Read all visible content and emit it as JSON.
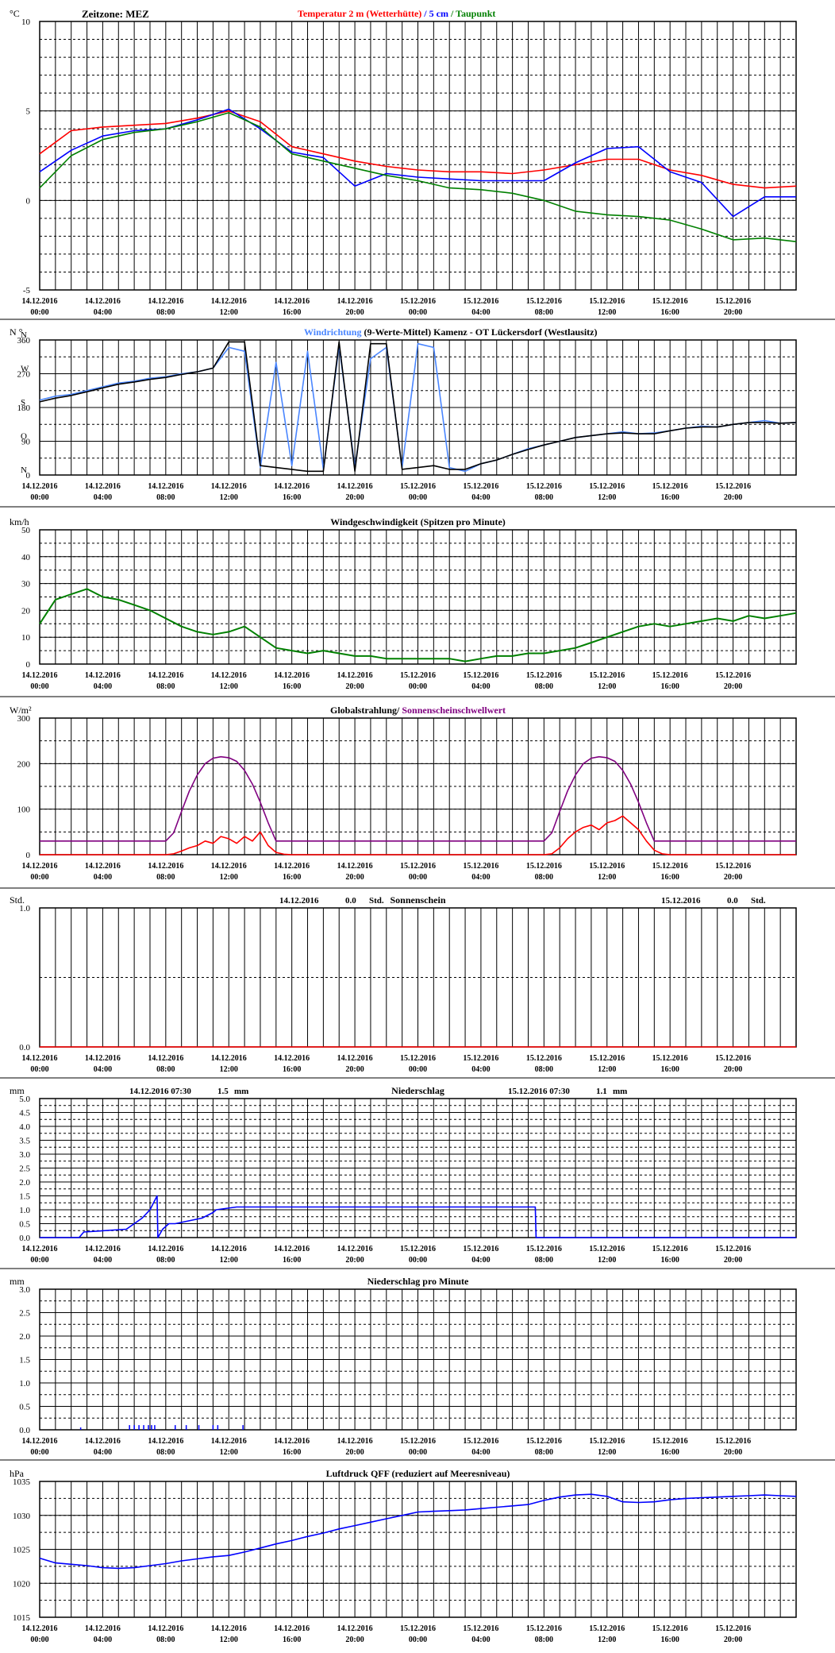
{
  "time_labels": [
    [
      "14.12.2016",
      "00:00"
    ],
    [
      "14.12.2016",
      "04:00"
    ],
    [
      "14.12.2016",
      "08:00"
    ],
    [
      "14.12.2016",
      "12:00"
    ],
    [
      "14.12.2016",
      "16:00"
    ],
    [
      "14.12.2016",
      "20:00"
    ],
    [
      "15.12.2016",
      "00:00"
    ],
    [
      "15.12.2016",
      "04:00"
    ],
    [
      "15.12.2016",
      "08:00"
    ],
    [
      "15.12.2016",
      "12:00"
    ],
    [
      "15.12.2016",
      "16:00"
    ],
    [
      "15.12.2016",
      "20:00"
    ]
  ],
  "colors": {
    "red": "#ff0000",
    "blue": "#0000ff",
    "green": "#008000",
    "purple": "#800080",
    "lightblue": "#4a86ff",
    "black": "#000000"
  },
  "chart_data": [
    {
      "id": "temp",
      "type": "line",
      "unit": "°C",
      "timezone": "Zeitzone: MEZ",
      "title_parts": [
        {
          "text": "Temperatur 2 m (Wetterhütte)",
          "color": "#ff0000"
        },
        {
          "text": "  /  ",
          "color": "#0000ff"
        },
        {
          "text": "5 cm",
          "color": "#0000ff"
        },
        {
          "text": " / ",
          "color": "#008000"
        },
        {
          "text": "Taupunkt",
          "color": "#008000"
        }
      ],
      "y_ticks": [
        "10",
        "5",
        "0",
        "-5"
      ],
      "ylim": [
        -5,
        10
      ],
      "x_hours": [
        0,
        2,
        4,
        6,
        8,
        10,
        12,
        14,
        16,
        18,
        20,
        22,
        24,
        26,
        28,
        30,
        32,
        34,
        36,
        38,
        40,
        42,
        44,
        46,
        48
      ],
      "series": [
        {
          "name": "Temperatur 2 m (Wetterhütte)",
          "color": "#ff0000",
          "values": [
            2.6,
            3.9,
            4.1,
            4.2,
            4.3,
            4.6,
            5.0,
            4.4,
            3.0,
            2.6,
            2.2,
            1.9,
            1.7,
            1.6,
            1.6,
            1.5,
            1.7,
            2.0,
            2.3,
            2.3,
            1.7,
            1.4,
            0.9,
            0.7,
            0.8
          ]
        },
        {
          "name": "5 cm",
          "color": "#0000ff",
          "values": [
            1.6,
            2.8,
            3.6,
            3.9,
            4.0,
            4.5,
            5.1,
            4.0,
            2.7,
            2.4,
            0.8,
            1.5,
            1.3,
            1.2,
            1.1,
            1.1,
            1.1,
            2.1,
            2.9,
            3.0,
            1.6,
            1.0,
            -0.9,
            0.2,
            0.2
          ]
        },
        {
          "name": "Taupunkt",
          "color": "#008000",
          "values": [
            0.7,
            2.5,
            3.4,
            3.8,
            4.0,
            4.4,
            4.9,
            4.1,
            2.6,
            2.2,
            1.8,
            1.4,
            1.1,
            0.7,
            0.6,
            0.4,
            0.0,
            -0.6,
            -0.8,
            -0.9,
            -1.1,
            -1.6,
            -2.2,
            -2.1,
            -2.3
          ]
        }
      ]
    },
    {
      "id": "wind_dir",
      "type": "line",
      "unit": "N °",
      "title_parts": [
        {
          "text": "Windrichtung",
          "color": "#4a86ff"
        },
        {
          "text": " (9-Werte-Mittel)",
          "color": "#000000"
        },
        {
          "text": "        Kamenz - OT Lückersdorf (Westlausitz)",
          "color": "#000000"
        }
      ],
      "y_ticks": [
        "360",
        "270",
        "180",
        "90",
        "0"
      ],
      "y_letters": [
        "N",
        "W",
        "S",
        "O",
        "N"
      ],
      "ylim": [
        0,
        360
      ],
      "x_hours": [
        0,
        1,
        2,
        3,
        4,
        5,
        6,
        7,
        8,
        9,
        10,
        11,
        12,
        13,
        14,
        15,
        16,
        17,
        18,
        19,
        20,
        21,
        22,
        23,
        24,
        25,
        26,
        27,
        28,
        29,
        30,
        31,
        32,
        33,
        34,
        35,
        36,
        37,
        38,
        39,
        40,
        41,
        42,
        43,
        44,
        45,
        46,
        47,
        48
      ],
      "series": [
        {
          "name": "Windrichtung",
          "color": "#4a86ff",
          "values": [
            200,
            210,
            215,
            225,
            235,
            245,
            250,
            258,
            262,
            270,
            275,
            285,
            340,
            330,
            20,
            300,
            25,
            330,
            15,
            345,
            20,
            310,
            340,
            20,
            350,
            340,
            20,
            10,
            30,
            40,
            55,
            70,
            80,
            90,
            100,
            105,
            110,
            115,
            110,
            112,
            118,
            125,
            130,
            128,
            135,
            140,
            145,
            138,
            140
          ]
        },
        {
          "name": "9-Werte-Mittel",
          "color": "#000000",
          "values": [
            195,
            205,
            212,
            222,
            232,
            242,
            248,
            255,
            260,
            268,
            275,
            285,
            355,
            355,
            25,
            20,
            15,
            10,
            10,
            355,
            10,
            350,
            350,
            15,
            20,
            25,
            15,
            15,
            30,
            40,
            55,
            68,
            80,
            90,
            100,
            105,
            110,
            112,
            110,
            110,
            118,
            125,
            128,
            128,
            135,
            140,
            140,
            138,
            140
          ]
        }
      ]
    },
    {
      "id": "wind_speed",
      "type": "line",
      "unit": "km/h",
      "title_parts": [
        {
          "text": "Windgeschwindigkeit (Spitzen pro Minute)",
          "color": "#000000"
        }
      ],
      "y_ticks": [
        "50",
        "40",
        "30",
        "20",
        "10",
        "0"
      ],
      "ylim": [
        0,
        50
      ],
      "x_hours": [
        0,
        1,
        2,
        3,
        4,
        5,
        6,
        7,
        8,
        9,
        10,
        11,
        12,
        13,
        14,
        15,
        16,
        17,
        18,
        19,
        20,
        21,
        22,
        23,
        24,
        25,
        26,
        27,
        28,
        29,
        30,
        31,
        32,
        33,
        34,
        35,
        36,
        37,
        38,
        39,
        40,
        41,
        42,
        43,
        44,
        45,
        46,
        47,
        48
      ],
      "series": [
        {
          "name": "Windgeschwindigkeit",
          "color": "#008000",
          "values": [
            15,
            24,
            26,
            28,
            25,
            24,
            22,
            20,
            17,
            14,
            12,
            11,
            12,
            14,
            10,
            6,
            5,
            4,
            5,
            4,
            3,
            3,
            2,
            2,
            2,
            2,
            2,
            1,
            2,
            3,
            3,
            4,
            4,
            5,
            6,
            8,
            10,
            12,
            14,
            15,
            14,
            15,
            16,
            17,
            16,
            18,
            17,
            18,
            19
          ]
        }
      ]
    },
    {
      "id": "radiation",
      "type": "line",
      "unit": "W/m²",
      "title_parts": [
        {
          "text": "Globalstrahlung/ ",
          "color": "#000000"
        },
        {
          "text": "Sonnenscheinschwellwert",
          "color": "#800080"
        }
      ],
      "y_ticks": [
        "300",
        "200",
        "100",
        "0"
      ],
      "ylim": [
        0,
        300
      ],
      "x_hours": [
        0,
        8,
        8.5,
        9,
        9.5,
        10,
        10.5,
        11,
        11.5,
        12,
        12.5,
        13,
        13.5,
        14,
        14.5,
        15,
        15.5,
        16,
        32,
        32.5,
        33,
        33.5,
        34,
        34.5,
        35,
        35.5,
        36,
        36.5,
        37,
        37.5,
        38,
        38.5,
        39,
        39.5,
        40,
        48
      ],
      "series": [
        {
          "name": "Globalstrahlung",
          "color": "#ff0000",
          "values": [
            0,
            0,
            2,
            8,
            15,
            20,
            30,
            25,
            40,
            35,
            25,
            40,
            30,
            50,
            20,
            5,
            1,
            0,
            0,
            2,
            15,
            35,
            50,
            60,
            65,
            55,
            70,
            75,
            85,
            70,
            55,
            30,
            10,
            2,
            0,
            0
          ]
        },
        {
          "name": "Sonnenscheinschwellwert",
          "color": "#800080",
          "values": [
            30,
            30,
            48,
            95,
            140,
            175,
            200,
            212,
            215,
            213,
            205,
            185,
            155,
            115,
            70,
            30,
            30,
            30,
            30,
            48,
            95,
            140,
            175,
            200,
            212,
            215,
            213,
            205,
            185,
            155,
            115,
            70,
            30,
            30,
            30,
            30
          ]
        }
      ]
    },
    {
      "id": "sunshine",
      "type": "line",
      "unit": "Std.",
      "title_parts": [
        {
          "text": "Sonnenschein",
          "color": "#000000"
        }
      ],
      "annotations": [
        {
          "date": "14.12.2016",
          "value": "0.0",
          "unit": "Std."
        },
        {
          "date": "15.12.2016",
          "value": "0.0",
          "unit": "Std."
        }
      ],
      "y_ticks": [
        "1.0",
        "0.0"
      ],
      "ylim": [
        0,
        1
      ],
      "x_hours": [
        0,
        48
      ],
      "series": [
        {
          "name": "Sonnenschein",
          "color": "#ff0000",
          "values": [
            0,
            0
          ]
        }
      ]
    },
    {
      "id": "precip",
      "type": "line",
      "unit": "mm",
      "title_parts": [
        {
          "text": "Niederschlag",
          "color": "#000000"
        }
      ],
      "annotations": [
        {
          "date": "14.12.2016 07:30",
          "value": "1.5",
          "unit": "mm"
        },
        {
          "date": "15.12.2016 07:30",
          "value": "1.1",
          "unit": "mm"
        }
      ],
      "y_ticks": [
        "5.0",
        "4.5",
        "4.0",
        "3.5",
        "3.0",
        "2.5",
        "2.0",
        "1.5",
        "1.0",
        "0.5",
        "0.0"
      ],
      "ylim": [
        0,
        5
      ],
      "x_hours": [
        0,
        2.5,
        2.8,
        5.5,
        6.5,
        7.0,
        7.45,
        7.5,
        7.8,
        8.2,
        8.6,
        10.3,
        11.0,
        11.2,
        12.5,
        31.45,
        31.5,
        48
      ],
      "series": [
        {
          "name": "Niederschlag",
          "color": "#0000ff",
          "values": [
            0,
            0,
            0.2,
            0.3,
            0.7,
            1.0,
            1.5,
            0,
            0.3,
            0.5,
            0.5,
            0.7,
            0.9,
            1.0,
            1.1,
            1.1,
            0,
            0
          ]
        }
      ]
    },
    {
      "id": "precip_min",
      "type": "bar",
      "unit": "mm",
      "title_parts": [
        {
          "text": "Niederschlag pro Minute",
          "color": "#000000"
        }
      ],
      "y_ticks": [
        "3.0",
        "2.5",
        "2.0",
        "1.5",
        "1.0",
        "0.5",
        "0.0"
      ],
      "ylim": [
        0,
        3
      ],
      "x_hours": [
        2.6,
        5.7,
        6.0,
        6.3,
        6.6,
        6.9,
        7.1,
        7.3,
        8.6,
        9.3,
        10.1,
        11.0,
        11.3,
        12.9
      ],
      "values": [
        0.05,
        0.1,
        0.1,
        0.1,
        0.1,
        0.1,
        0.1,
        0.1,
        0.1,
        0.1,
        0.1,
        0.1,
        0.1,
        0.1
      ],
      "color": "#0000ff"
    },
    {
      "id": "pressure",
      "type": "line",
      "unit": "hPa",
      "title_parts": [
        {
          "text": "Luftdruck QFF (reduziert auf Meeresniveau)",
          "color": "#000000"
        }
      ],
      "y_ticks": [
        "1035",
        "1030",
        "1025",
        "1020",
        "1015"
      ],
      "ylim": [
        1015,
        1035
      ],
      "x_hours": [
        0,
        1,
        2,
        3,
        4,
        5,
        6,
        7,
        8,
        9,
        10,
        11,
        12,
        13,
        14,
        15,
        16,
        17,
        18,
        19,
        20,
        21,
        22,
        23,
        24,
        25,
        26,
        27,
        28,
        29,
        30,
        31,
        32,
        33,
        34,
        35,
        36,
        37,
        38,
        39,
        40,
        41,
        42,
        43,
        44,
        45,
        46,
        47,
        48
      ],
      "series": [
        {
          "name": "Luftdruck QFF",
          "color": "#0000ff",
          "values": [
            1023.7,
            1023.0,
            1022.8,
            1022.6,
            1022.3,
            1022.2,
            1022.3,
            1022.6,
            1022.9,
            1023.3,
            1023.6,
            1023.9,
            1024.1,
            1024.6,
            1025.2,
            1025.8,
            1026.3,
            1026.9,
            1027.4,
            1028.0,
            1028.5,
            1029.0,
            1029.5,
            1030.0,
            1030.5,
            1030.6,
            1030.7,
            1030.8,
            1031.0,
            1031.2,
            1031.4,
            1031.6,
            1032.2,
            1032.7,
            1033.0,
            1033.1,
            1032.8,
            1032.0,
            1031.9,
            1032.0,
            1032.3,
            1032.5,
            1032.6,
            1032.7,
            1032.8,
            1032.9,
            1033.0,
            1032.9,
            1032.8
          ]
        }
      ]
    }
  ]
}
